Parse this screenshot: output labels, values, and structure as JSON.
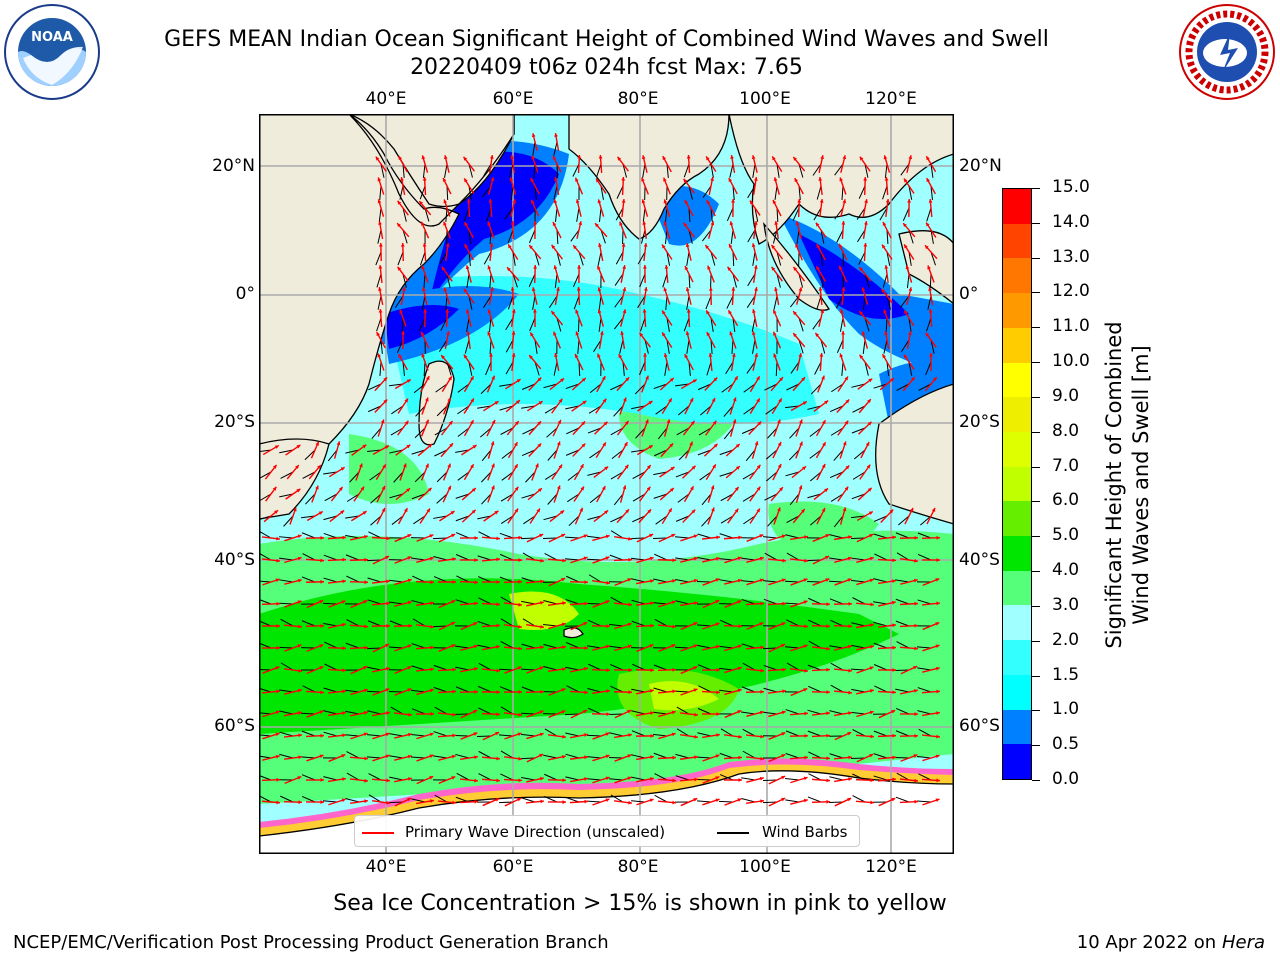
{
  "header": {
    "title_line1": "GEFS MEAN Indian Ocean Significant Height of Combined Wind Waves and Swell",
    "title_line2": "20220409 t06z 024h fcst   Max: 7.65"
  },
  "map": {
    "region": "Indian Ocean",
    "lon_labels_top": [
      "40°E",
      "60°E",
      "80°E",
      "100°E",
      "120°E"
    ],
    "lon_labels_bottom": [
      "40°E",
      "60°E",
      "80°E",
      "100°E",
      "120°E"
    ],
    "lat_labels_left": [
      "20°N",
      "0°",
      "20°S",
      "40°S",
      "60°S"
    ],
    "lat_labels_right": [
      "20°N",
      "0°",
      "20°S",
      "40°S",
      "60°S"
    ],
    "colors": {
      "land": "#efecdc",
      "sea_ice": "#ffffff",
      "grid": "#aaaaaa",
      "wave_arrows": "#ff0000",
      "wind_barbs": "#000000"
    }
  },
  "colorbar": {
    "title_line1": "Significant Height of Combined",
    "title_line2": "Wind Waves and Swell [m]",
    "tick_labels": [
      "0.0",
      "0.5",
      "1.0",
      "1.5",
      "2.0",
      "3.0",
      "4.0",
      "5.0",
      "6.0",
      "7.0",
      "8.0",
      "9.0",
      "10.0",
      "11.0",
      "12.0",
      "13.0",
      "14.0",
      "15.0"
    ],
    "bins": [
      {
        "from": 0.0,
        "to": 0.5,
        "color": "#0000ff"
      },
      {
        "from": 0.5,
        "to": 1.0,
        "color": "#0080ff"
      },
      {
        "from": 1.0,
        "to": 1.5,
        "color": "#00ffff"
      },
      {
        "from": 1.5,
        "to": 2.0,
        "color": "#33ffff"
      },
      {
        "from": 2.0,
        "to": 3.0,
        "color": "#a0ffff"
      },
      {
        "from": 3.0,
        "to": 4.0,
        "color": "#55ff7a"
      },
      {
        "from": 4.0,
        "to": 5.0,
        "color": "#00e600"
      },
      {
        "from": 5.0,
        "to": 6.0,
        "color": "#66ee00"
      },
      {
        "from": 6.0,
        "to": 7.0,
        "color": "#c0ff00"
      },
      {
        "from": 7.0,
        "to": 8.0,
        "color": "#ddff00"
      },
      {
        "from": 8.0,
        "to": 9.0,
        "color": "#eeee00"
      },
      {
        "from": 9.0,
        "to": 10.0,
        "color": "#ffff00"
      },
      {
        "from": 10.0,
        "to": 11.0,
        "color": "#ffcc00"
      },
      {
        "from": 11.0,
        "to": 12.0,
        "color": "#ff9900"
      },
      {
        "from": 12.0,
        "to": 13.0,
        "color": "#ff7700"
      },
      {
        "from": 13.0,
        "to": 14.0,
        "color": "#ff4400"
      },
      {
        "from": 14.0,
        "to": 15.0,
        "color": "#ff0000"
      }
    ]
  },
  "legend": {
    "wave_label": "Primary Wave Direction (unscaled)",
    "wind_label": "Wind Barbs"
  },
  "caption": "Sea Ice Concentration > 15% is shown in pink to yellow",
  "footer": {
    "left": "NCEP/EMC/Verification Post Processing Product Generation Branch",
    "right_date": "10 Apr 2022 on ",
    "right_machine": "Hera"
  }
}
